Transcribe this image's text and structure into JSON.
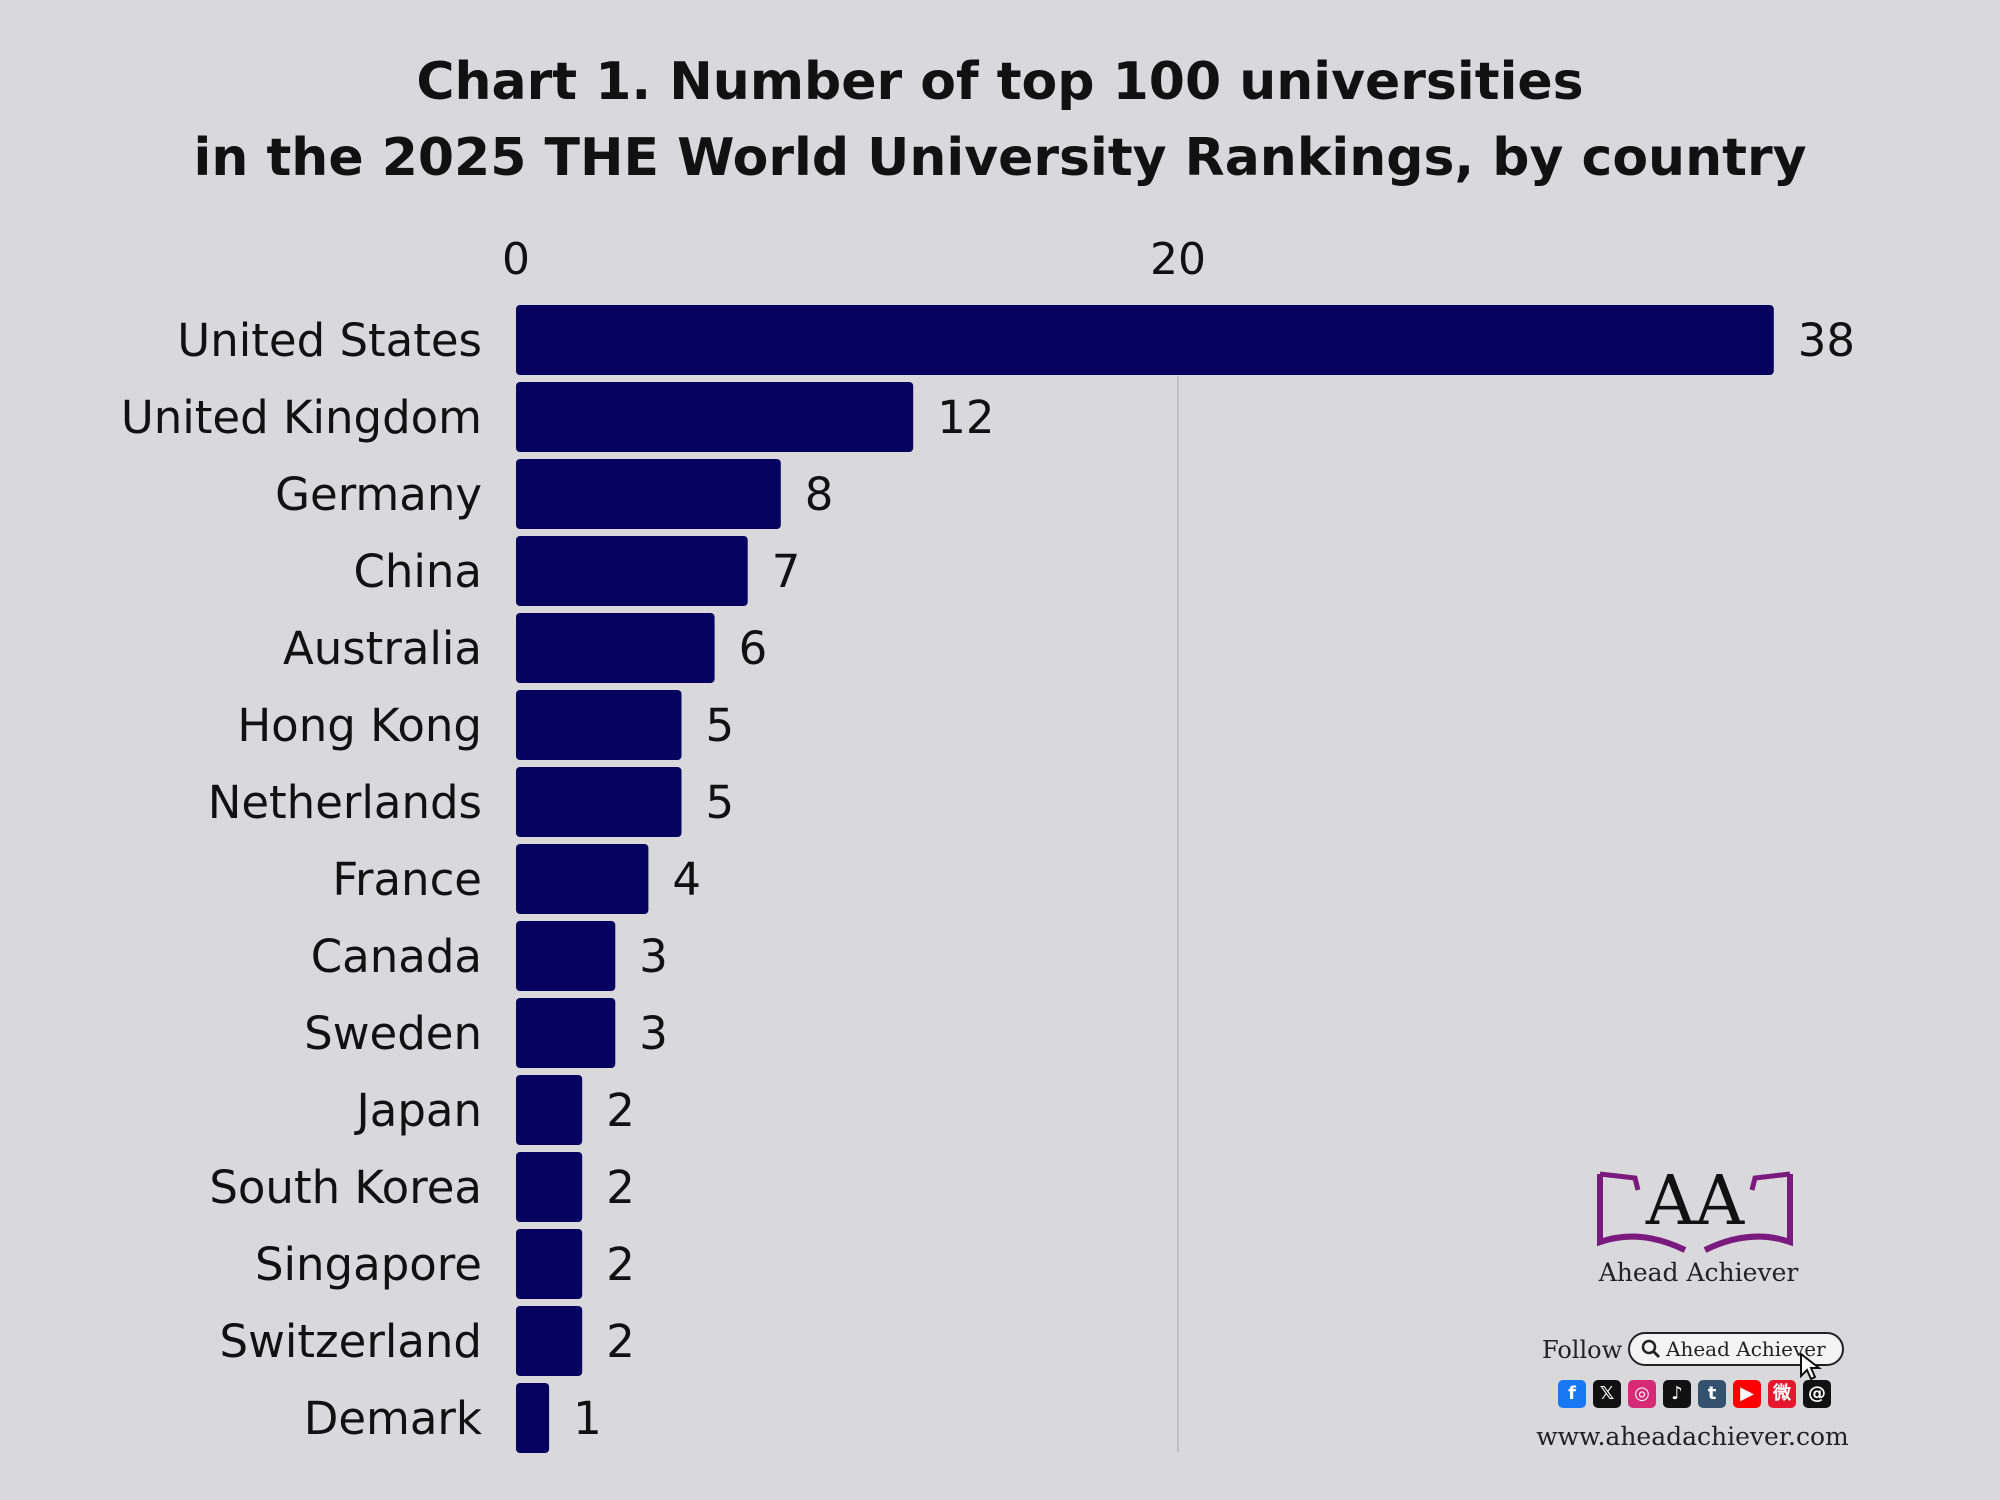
{
  "chart_data": {
    "type": "bar",
    "orientation": "horizontal",
    "title_lines": [
      "Chart 1. Number of top 100 universities",
      "in the 2025 THE World University Rankings, by country"
    ],
    "categories": [
      "United States",
      "United Kingdom",
      "Germany",
      "China",
      "Australia",
      "Hong Kong",
      "Netherlands",
      "France",
      "Canada",
      "Sweden",
      "Japan",
      "South Korea",
      "Singapore",
      "Switzerland",
      "Demark"
    ],
    "values": [
      38,
      12,
      8,
      7,
      6,
      5,
      5,
      4,
      3,
      3,
      2,
      2,
      2,
      2,
      1
    ],
    "x_ticks": [
      0,
      20
    ],
    "xlim": [
      0,
      40
    ],
    "xlabel": "",
    "ylabel": "",
    "grid": true,
    "axis_position": "top",
    "colors": {
      "bar": "#05035f",
      "grid": "#b8b8bc",
      "text": "#111111"
    }
  },
  "branding": {
    "logo_text": "AA",
    "name": "Ahead Achiever",
    "follow_label": "Follow",
    "search_text": "Ahead Achiever",
    "website": "www.aheadachiever.com",
    "logo_color": "#7a1a7e",
    "social_icons": [
      {
        "name": "facebook-icon",
        "glyph": "f",
        "color": "#1877f2"
      },
      {
        "name": "x-icon",
        "glyph": "𝕏",
        "color": "#111111"
      },
      {
        "name": "instagram-icon",
        "glyph": "◎",
        "color": "#d62976"
      },
      {
        "name": "tiktok-icon",
        "glyph": "♪",
        "color": "#111111"
      },
      {
        "name": "tumblr-icon",
        "glyph": "t",
        "color": "#34526f"
      },
      {
        "name": "youtube-icon",
        "glyph": "▶",
        "color": "#ff0000"
      },
      {
        "name": "weibo-icon",
        "glyph": "微",
        "color": "#e6162d"
      },
      {
        "name": "threads-icon",
        "glyph": "@",
        "color": "#111111"
      }
    ]
  }
}
